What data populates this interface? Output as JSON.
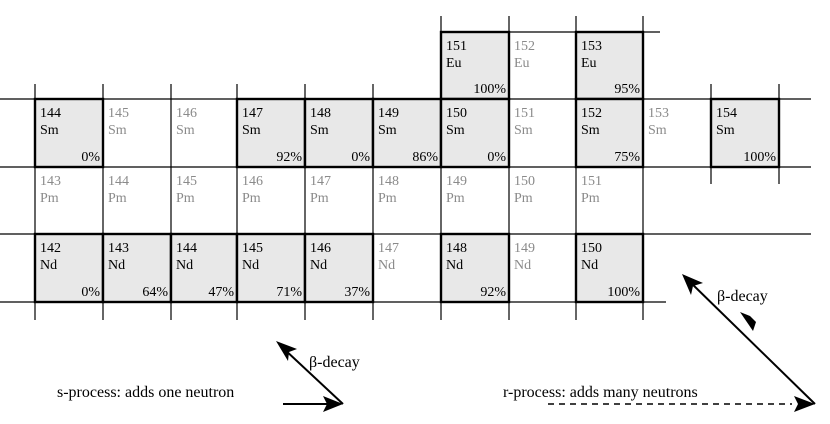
{
  "nuclide_chart": {
    "elements": {
      "Eu": [
        {
          "mass": "151",
          "symbol": "Eu",
          "abundance": "100%",
          "stable": true
        },
        {
          "mass": "152",
          "symbol": "Eu",
          "abundance": "",
          "stable": false
        },
        {
          "mass": "153",
          "symbol": "Eu",
          "abundance": "95%",
          "stable": true
        }
      ],
      "Sm": [
        {
          "mass": "144",
          "symbol": "Sm",
          "abundance": "0%",
          "stable": true
        },
        {
          "mass": "145",
          "symbol": "Sm",
          "abundance": "",
          "stable": false
        },
        {
          "mass": "146",
          "symbol": "Sm",
          "abundance": "",
          "stable": false
        },
        {
          "mass": "147",
          "symbol": "Sm",
          "abundance": "92%",
          "stable": true
        },
        {
          "mass": "148",
          "symbol": "Sm",
          "abundance": "0%",
          "stable": true
        },
        {
          "mass": "149",
          "symbol": "Sm",
          "abundance": "86%",
          "stable": true
        },
        {
          "mass": "150",
          "symbol": "Sm",
          "abundance": "0%",
          "stable": true
        },
        {
          "mass": "151",
          "symbol": "Sm",
          "abundance": "",
          "stable": false
        },
        {
          "mass": "152",
          "symbol": "Sm",
          "abundance": "75%",
          "stable": true
        },
        {
          "mass": "153",
          "symbol": "Sm",
          "abundance": "",
          "stable": false
        },
        {
          "mass": "154",
          "symbol": "Sm",
          "abundance": "100%",
          "stable": true
        }
      ],
      "Pm": [
        {
          "mass": "143",
          "symbol": "Pm",
          "abundance": "",
          "stable": false
        },
        {
          "mass": "144",
          "symbol": "Pm",
          "abundance": "",
          "stable": false
        },
        {
          "mass": "145",
          "symbol": "Pm",
          "abundance": "",
          "stable": false
        },
        {
          "mass": "146",
          "symbol": "Pm",
          "abundance": "",
          "stable": false
        },
        {
          "mass": "147",
          "symbol": "Pm",
          "abundance": "",
          "stable": false
        },
        {
          "mass": "148",
          "symbol": "Pm",
          "abundance": "",
          "stable": false
        },
        {
          "mass": "149",
          "symbol": "Pm",
          "abundance": "",
          "stable": false
        },
        {
          "mass": "150",
          "symbol": "Pm",
          "abundance": "",
          "stable": false
        },
        {
          "mass": "151",
          "symbol": "Pm",
          "abundance": "",
          "stable": false
        }
      ],
      "Nd": [
        {
          "mass": "142",
          "symbol": "Nd",
          "abundance": "0%",
          "stable": true
        },
        {
          "mass": "143",
          "symbol": "Nd",
          "abundance": "64%",
          "stable": true
        },
        {
          "mass": "144",
          "symbol": "Nd",
          "abundance": "47%",
          "stable": true
        },
        {
          "mass": "145",
          "symbol": "Nd",
          "abundance": "71%",
          "stable": true
        },
        {
          "mass": "146",
          "symbol": "Nd",
          "abundance": "37%",
          "stable": true
        },
        {
          "mass": "147",
          "symbol": "Nd",
          "abundance": "",
          "stable": false
        },
        {
          "mass": "148",
          "symbol": "Nd",
          "abundance": "92%",
          "stable": true
        },
        {
          "mass": "149",
          "symbol": "Nd",
          "abundance": "",
          "stable": false
        },
        {
          "mass": "150",
          "symbol": "Nd",
          "abundance": "100%",
          "stable": true
        }
      ]
    }
  },
  "legend": {
    "s_process": {
      "caption": "s-process: adds one neutron",
      "beta_label": "β-decay"
    },
    "r_process": {
      "caption": "r-process: adds many neutrons",
      "beta_label": "β-decay"
    }
  },
  "colors": {
    "stable_fill": "#e8e8e8",
    "unstable_text": "#8a8a8a",
    "line": "#000000"
  }
}
